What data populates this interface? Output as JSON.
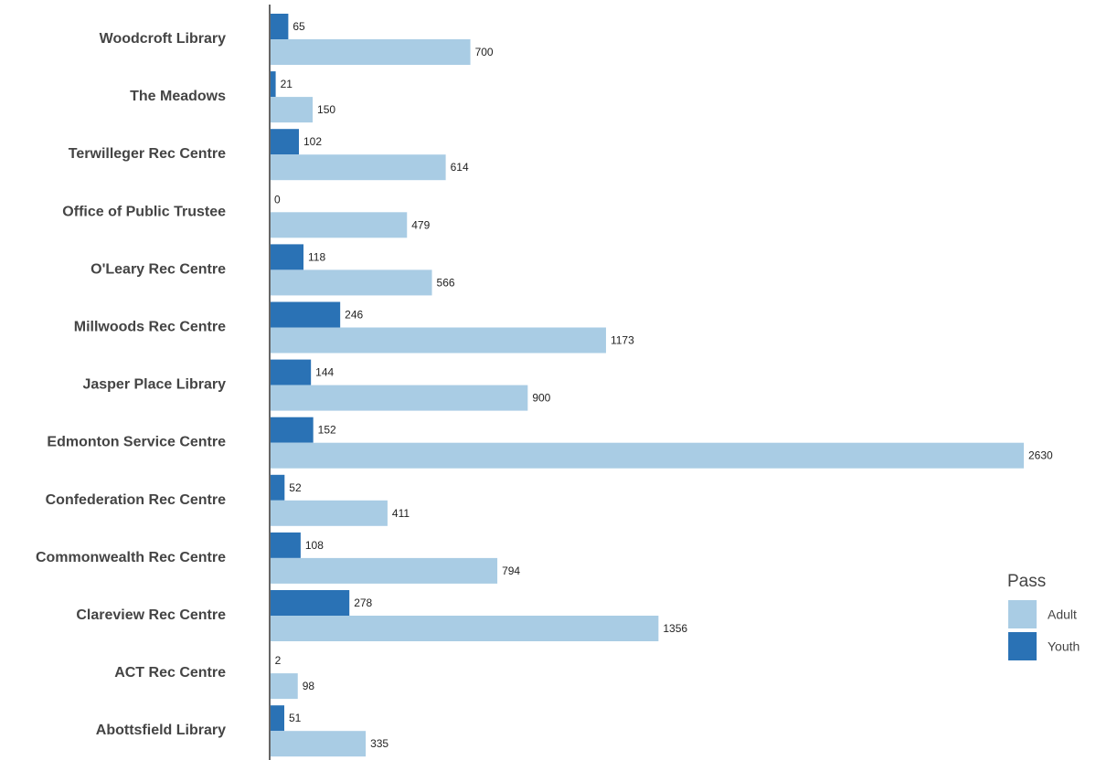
{
  "chart_data": {
    "type": "bar",
    "orientation": "horizontal",
    "categories": [
      "Woodcroft Library",
      "The Meadows",
      "Terwilleger Rec Centre",
      "Office of Public Trustee",
      "O'Leary Rec Centre",
      "Millwoods Rec Centre",
      "Jasper Place Library",
      "Edmonton Service Centre",
      "Confederation Rec Centre",
      "Commonwealth Rec Centre",
      "Clareview Rec Centre",
      "ACT Rec Centre",
      "Abottsfield Library"
    ],
    "series": [
      {
        "name": "Youth",
        "color": "#2a72b5",
        "values": [
          65,
          21,
          102,
          0,
          118,
          246,
          144,
          152,
          52,
          108,
          278,
          2,
          51
        ]
      },
      {
        "name": "Adult",
        "color": "#a9cce4",
        "values": [
          700,
          150,
          614,
          479,
          566,
          1173,
          900,
          2630,
          411,
          794,
          1356,
          98,
          335
        ]
      }
    ],
    "xlim": [
      0,
      2630
    ],
    "data_labels": true,
    "grid": false,
    "legend": {
      "title": "Pass",
      "position": "right",
      "entries": [
        {
          "label": "Adult",
          "color": "#a9cce4"
        },
        {
          "label": "Youth",
          "color": "#2a72b5"
        }
      ]
    }
  }
}
